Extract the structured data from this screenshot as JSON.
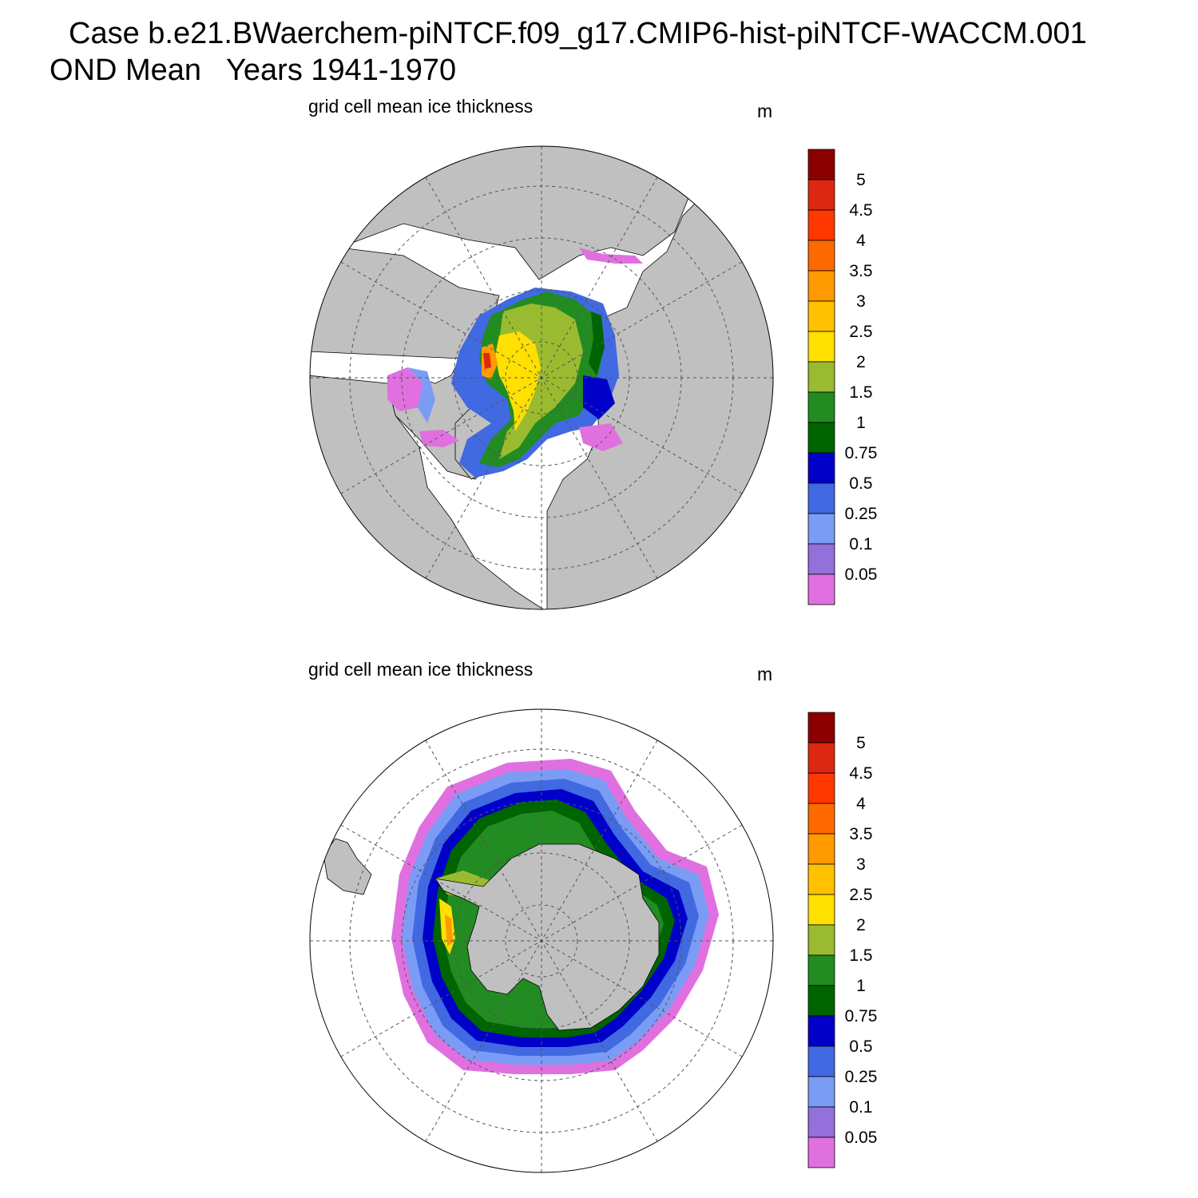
{
  "header": {
    "case_line": "Case b.e21.BWaerchem-piNTCF.f09_g17.CMIP6-hist-piNTCF-WACCM.001",
    "season_line": "OND Mean   Years 1941-1970"
  },
  "panels": [
    {
      "title": "grid cell mean ice thickness",
      "units": "m",
      "hemisphere": "north"
    },
    {
      "title": "grid cell mean ice thickness",
      "units": "m",
      "hemisphere": "south"
    }
  ],
  "colorbar": {
    "levels": [
      "0.05",
      "0.1",
      "0.25",
      "0.5",
      "0.75",
      "1",
      "1.5",
      "2",
      "2.5",
      "3",
      "3.5",
      "4",
      "4.5",
      "5"
    ],
    "colors": [
      "#e070e0",
      "#9370db",
      "#7b9cf5",
      "#4169e1",
      "#0000c8",
      "#006400",
      "#228b22",
      "#9abb30",
      "#ffe000",
      "#ffc000",
      "#ff9a00",
      "#ff6a00",
      "#ff3800",
      "#dc2810",
      "#8b0000"
    ]
  },
  "colors": {
    "land": "#c0c0c0",
    "ocean": "#ffffff",
    "grid": "#555555"
  }
}
